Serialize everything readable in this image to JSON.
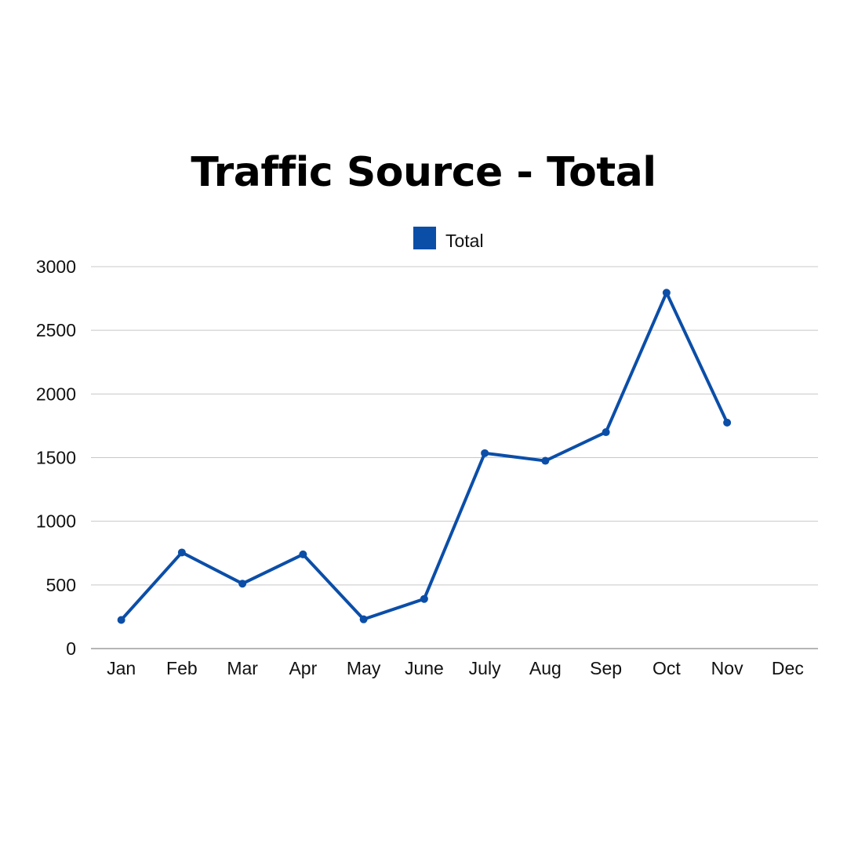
{
  "chart_data": {
    "type": "line",
    "title": "Traffic Source - Total",
    "xlabel": "",
    "ylabel": "",
    "categories": [
      "Jan",
      "Feb",
      "Mar",
      "Apr",
      "May",
      "June",
      "July",
      "Aug",
      "Sep",
      "Oct",
      "Nov",
      "Dec"
    ],
    "series": [
      {
        "name": "Total",
        "color": "#0b4ea8",
        "values": [
          225,
          755,
          510,
          740,
          230,
          390,
          1535,
          1475,
          1700,
          2795,
          1775,
          null
        ]
      }
    ],
    "ylim": [
      0,
      3000
    ],
    "yticks": [
      0,
      500,
      1000,
      1500,
      2000,
      2500,
      3000
    ],
    "grid": true,
    "legend_position": "top-center"
  },
  "colors": {
    "series": "#0b4ea8",
    "grid": "#c8c8c8",
    "axis": "#9e9e9e",
    "text": "#111111"
  }
}
